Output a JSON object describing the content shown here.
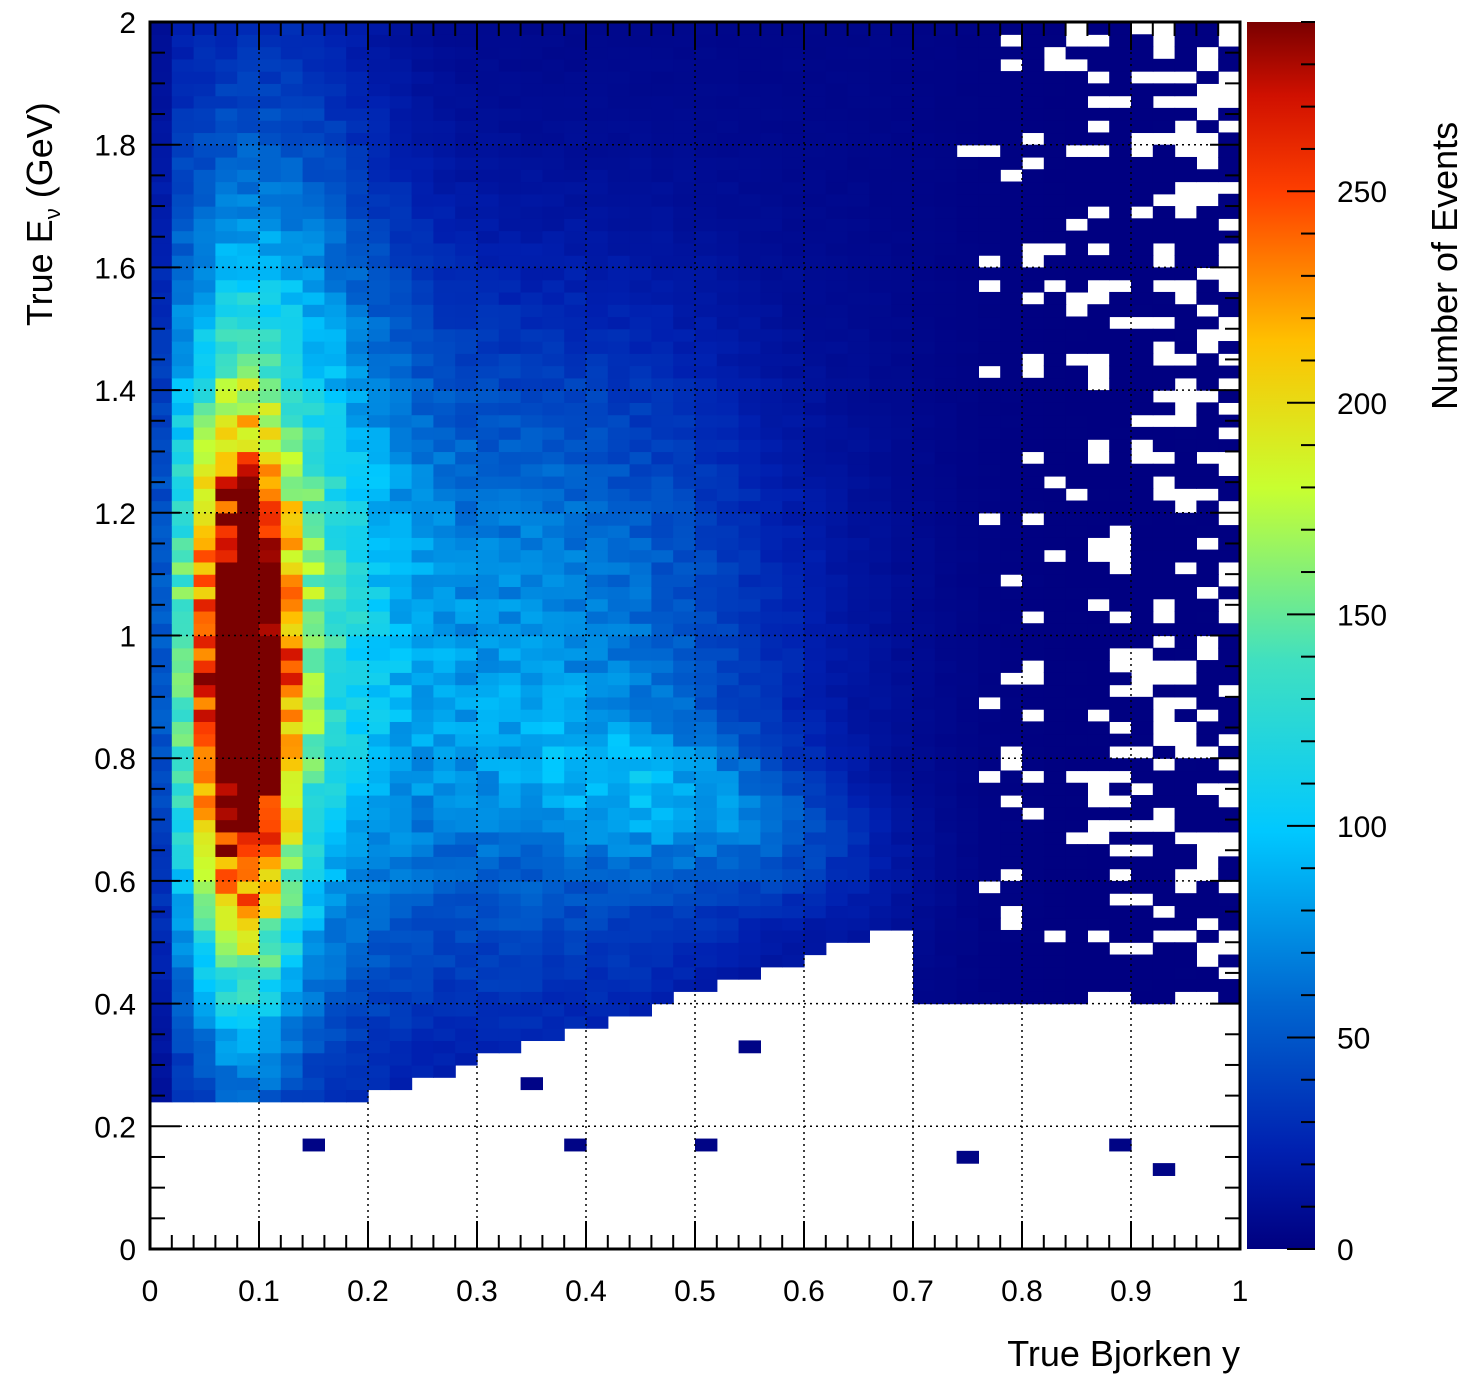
{
  "chart_data": {
    "type": "heatmap",
    "title": "",
    "xlabel": "True Bjorken y",
    "ylabel": "True E_ν (GeV)",
    "ylabel_parts": {
      "main": "True E",
      "sub": "ν",
      "unit": " (GeV)"
    },
    "zlabel": "Number of Events",
    "xlim": [
      0,
      1
    ],
    "ylim": [
      0,
      2
    ],
    "zlim": [
      0,
      290
    ],
    "x_ticks": [
      "0",
      "0.1",
      "0.2",
      "0.3",
      "0.4",
      "0.5",
      "0.6",
      "0.7",
      "0.8",
      "0.9",
      "1"
    ],
    "y_ticks": [
      "0",
      "0.2",
      "0.4",
      "0.6",
      "0.8",
      "1",
      "1.2",
      "1.4",
      "1.6",
      "1.8",
      "2"
    ],
    "z_ticks": [
      "0",
      "50",
      "100",
      "150",
      "200",
      "250"
    ],
    "bins": {
      "x": 50,
      "y": 100
    },
    "grid": true,
    "colormap": "rainbow (dark blue → cyan → green → yellow → red → dark red)",
    "empty_bins": "white",
    "features": [
      {
        "region": "y ≈ 0.05–0.15, E ≈ 0.6–1.3 GeV",
        "counts": "peak ≈ 280 events"
      },
      {
        "region": "y ≈ 0.4–0.65, E ≈ 0.6–0.8 GeV",
        "counts": "secondary band ≈ 110–130 events"
      },
      {
        "region": "y > 0.7",
        "counts": "sparse, ≤ 20 events per bin"
      },
      {
        "region": "E < 0.25 GeV",
        "counts": "almost empty"
      }
    ],
    "colors": {
      "scale": [
        "#000080",
        "#0020b0",
        "#0066d0",
        "#00c8ff",
        "#40e0c0",
        "#c8ff30",
        "#ffc000",
        "#ff4000",
        "#d01000",
        "#7a0000"
      ],
      "empty": "#ffffff",
      "grid": "#000000"
    }
  }
}
